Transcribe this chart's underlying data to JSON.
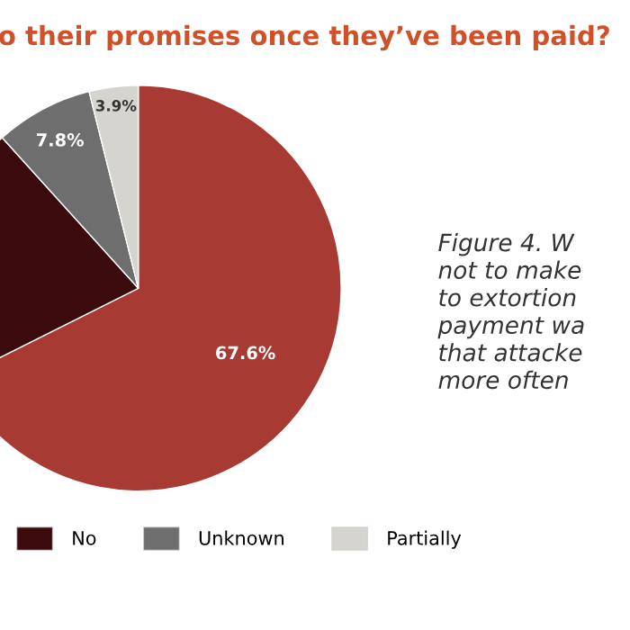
{
  "chart_data": {
    "type": "pie",
    "title": "o their promises once they’ve been paid?",
    "categories": [
      null,
      "No",
      "Unknown",
      "Partially"
    ],
    "values": [
      67.6,
      20.7,
      7.8,
      3.9
    ],
    "colors": [
      "#a83a34",
      "#3a0a0c",
      "#6e6e6e",
      "#d6d4cf"
    ],
    "value_labels": [
      "67.6%",
      null,
      "7.8%",
      "3.9%"
    ],
    "legend": "bottom",
    "annotations": [
      "Figure 4. W\nnot to make\nto extortion\npayment wa\nthat attacke\nmore often"
    ]
  }
}
